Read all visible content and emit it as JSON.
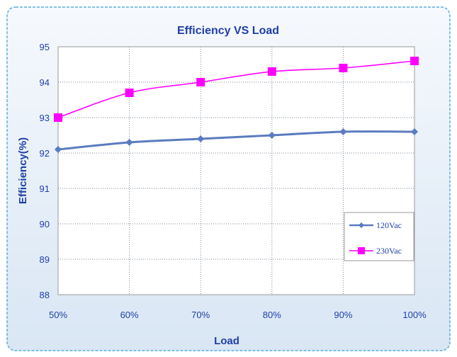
{
  "chart_data": {
    "type": "line",
    "title": "Efficiency VS  Load",
    "xlabel": "Load",
    "ylabel": "Efficiency(%)",
    "categories": [
      "50%",
      "60%",
      "70%",
      "80%",
      "90%",
      "100%"
    ],
    "ylim": [
      88,
      95
    ],
    "yticks": [
      "88",
      "89",
      "90",
      "91",
      "92",
      "93",
      "94",
      "95"
    ],
    "grid": true,
    "legend_position": "bottom-right",
    "series": [
      {
        "name": "120Vac",
        "values": [
          92.1,
          92.3,
          92.4,
          92.5,
          92.6,
          92.6
        ],
        "color": "#5b7bbf",
        "marker": "diamond"
      },
      {
        "name": "230Vac",
        "values": [
          93.0,
          93.7,
          94.0,
          94.3,
          94.4,
          94.6
        ],
        "color": "#ff00ff",
        "marker": "square"
      }
    ]
  },
  "colors": {
    "text": "#1f3fa6",
    "border": "#5aaede",
    "background_gradient": "#dde9f6"
  }
}
